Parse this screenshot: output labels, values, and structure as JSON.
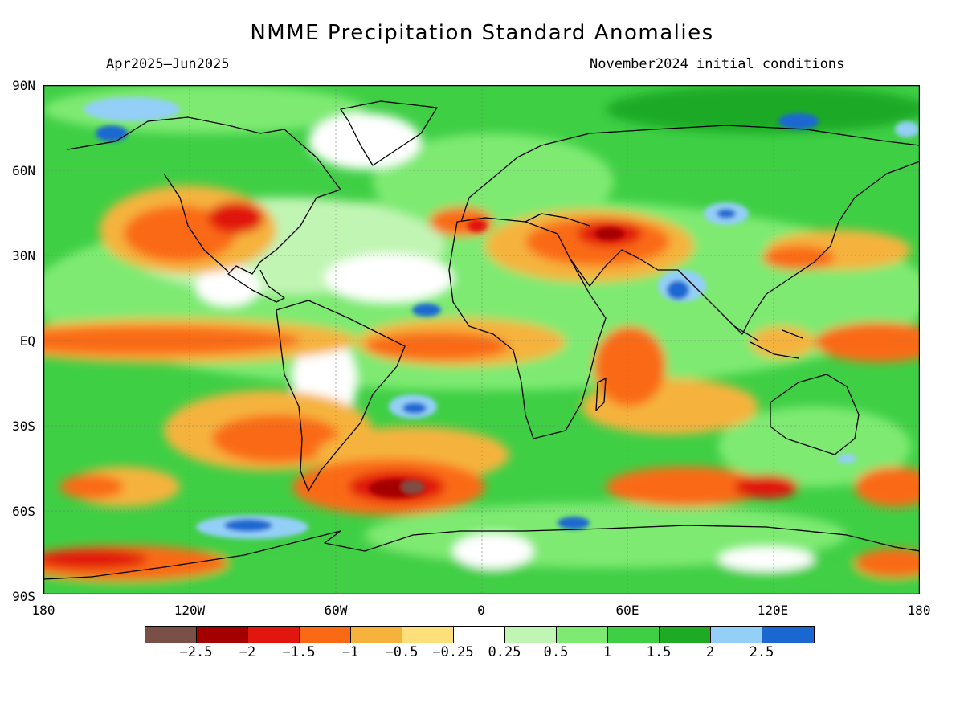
{
  "title": "NMME Precipitation Standard Anomalies",
  "subtitle_left": "Apr2025–Jun2025",
  "subtitle_right": "November2024 initial conditions",
  "lat_labels": [
    "90N",
    "60N",
    "30N",
    "EQ",
    "30S",
    "60S",
    "90S"
  ],
  "lon_labels": [
    "180",
    "120W",
    "60W",
    "0",
    "60E",
    "120E",
    "180"
  ],
  "colorbar": {
    "colors": [
      "#7a4f45",
      "#a50000",
      "#e0160f",
      "#fa6a15",
      "#f5b33c",
      "#fde07a",
      "#ffffff",
      "#c1f5b4",
      "#7eea72",
      "#3fcf45",
      "#1faa26",
      "#93cff6",
      "#1a67d2"
    ],
    "labels": [
      "−2.5",
      "−2",
      "−1.5",
      "−1",
      "−0.5",
      "−0.25",
      "0.25",
      "0.5",
      "1",
      "1.5",
      "2",
      "2.5"
    ]
  }
}
